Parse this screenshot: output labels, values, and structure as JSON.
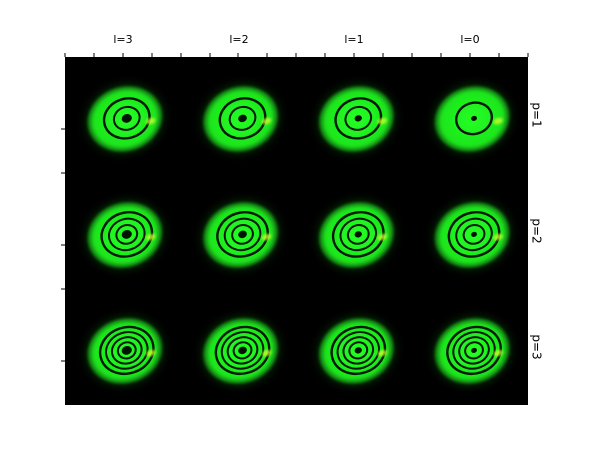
{
  "figure": {
    "column_labels": [
      "l=3",
      "l=2",
      "l=1",
      "l=0"
    ],
    "row_labels": [
      "p=1",
      "p=2",
      "p=3"
    ],
    "colors": {
      "beam": "#22ff22",
      "beam_dark": "#0a4a0a",
      "highlight": "#ddff33",
      "background": "#000000"
    },
    "panels": [
      [
        {
          "l": 3,
          "p": 1,
          "rings": 2
        },
        {
          "l": 2,
          "p": 1,
          "rings": 2
        },
        {
          "l": 1,
          "p": 1,
          "rings": 2
        },
        {
          "l": 0,
          "p": 1,
          "rings": 1
        }
      ],
      [
        {
          "l": 3,
          "p": 2,
          "rings": 3
        },
        {
          "l": 2,
          "p": 2,
          "rings": 3
        },
        {
          "l": 1,
          "p": 2,
          "rings": 3
        },
        {
          "l": 0,
          "p": 2,
          "rings": 3
        }
      ],
      [
        {
          "l": 3,
          "p": 3,
          "rings": 4
        },
        {
          "l": 2,
          "p": 3,
          "rings": 4
        },
        {
          "l": 1,
          "p": 3,
          "rings": 4
        },
        {
          "l": 0,
          "p": 3,
          "rings": 4
        }
      ]
    ]
  }
}
